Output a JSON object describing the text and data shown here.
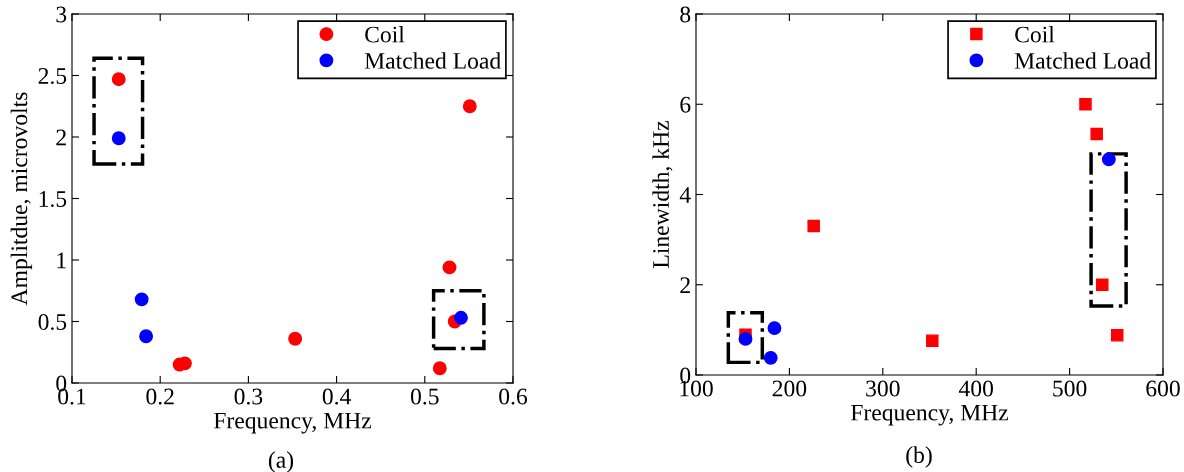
{
  "chart_data": [
    {
      "type": "scatter",
      "xlabel": "Frequency, MHz",
      "ylabel": "Amplitdue, microvolts",
      "annotations": [
        "(a)"
      ],
      "xlim": [
        0.1,
        0.6
      ],
      "ylim": [
        0,
        3
      ],
      "xticks": [
        0.1,
        0.2,
        0.3,
        0.4,
        0.5,
        0.6
      ],
      "yticks": [
        0,
        0.5,
        1,
        1.5,
        2,
        2.5,
        3
      ],
      "grid": false,
      "legend": "top right",
      "series": [
        {
          "name": "Coil",
          "color": "#ff0000",
          "marker": "circle",
          "x": [
            0.153,
            0.551,
            0.528,
            0.534,
            0.517,
            0.353,
            0.222,
            0.228
          ],
          "values": [
            2.47,
            2.25,
            0.94,
            0.5,
            0.12,
            0.36,
            0.15,
            0.16
          ]
        },
        {
          "name": "Matched Load",
          "color": "#0000ff",
          "marker": "circle",
          "x": [
            0.153,
            0.179,
            0.184,
            0.541
          ],
          "values": [
            1.99,
            0.68,
            0.38,
            0.53
          ]
        }
      ]
    },
    {
      "type": "scatter",
      "xlabel": "Frequency, MHz",
      "ylabel": "Linewidth, kHz",
      "annotations": [
        "(b)"
      ],
      "xlim": [
        100,
        600
      ],
      "ylim": [
        0,
        8
      ],
      "xticks": [
        100,
        200,
        300,
        400,
        500,
        600
      ],
      "yticks": [
        0,
        2,
        4,
        6,
        8
      ],
      "grid": false,
      "legend": "top right",
      "series": [
        {
          "name": "Coil",
          "color": "#ff0000",
          "marker": "square",
          "x": [
            153,
            226,
            353,
            517,
            529,
            535,
            551
          ],
          "values": [
            0.89,
            3.3,
            0.76,
            6.0,
            5.34,
            2.0,
            0.88
          ]
        },
        {
          "name": "Matched Load",
          "color": "#0000ff",
          "marker": "circle",
          "x": [
            153,
            180,
            184,
            542
          ],
          "values": [
            0.8,
            0.38,
            1.04,
            4.78
          ]
        }
      ]
    }
  ]
}
